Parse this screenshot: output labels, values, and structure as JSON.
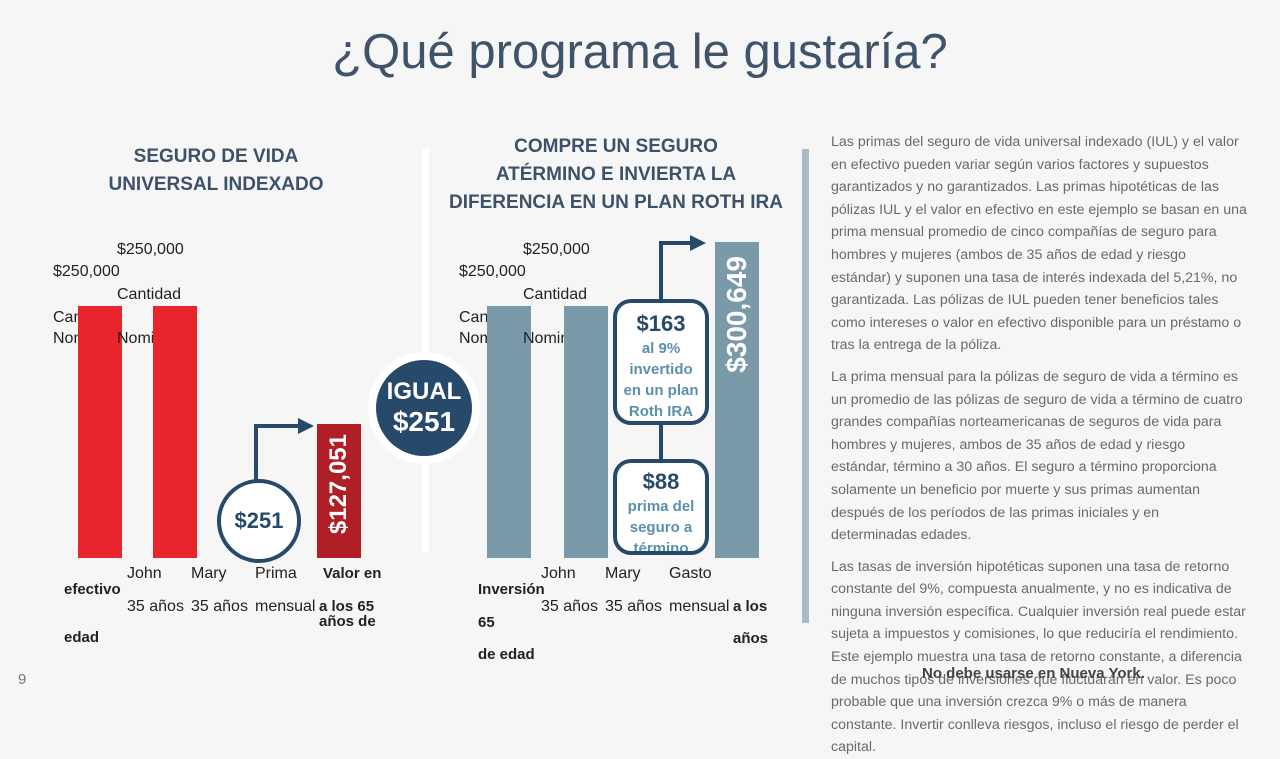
{
  "page": {
    "title": "¿Qué programa le gustaría?",
    "page_number": "9",
    "footer": "No debe usarse en Nueva York."
  },
  "left": {
    "heading_line1": "SEGURO DE VIDA",
    "heading_line2": "UNIVERSAL INDEXADO",
    "bar1": {
      "amount": "$250,000",
      "label_a": "Cantidad",
      "label_b": "Nominal",
      "name": "John",
      "age": "35 años"
    },
    "bar2": {
      "amount": "$250,000",
      "label_a": "Cantidad",
      "label_b": "Nominal",
      "name": "Mary",
      "age": "35 años"
    },
    "premium": {
      "value": "$251",
      "label_a": "Prima",
      "label_b": "mensual"
    },
    "value_bar": {
      "value": "$127,051",
      "label_a": "Valor en",
      "label_b": "efectivo",
      "label_c": "a los 65",
      "label_d": "años de",
      "label_e": "edad"
    }
  },
  "center": {
    "line1": "IGUAL",
    "line2": "$251"
  },
  "right": {
    "heading_line1": "COMPRE UN SEGURO",
    "heading_line2": "ATÉRMINO E INVIERTA LA",
    "heading_line3": "DIFERENCIA EN UN PLAN ROTH IRA",
    "bar1": {
      "amount": "$250,000",
      "label_a": "Cantidad",
      "label_b": "Nominal",
      "name": "John",
      "age": "35 años"
    },
    "bar2": {
      "amount": "$250,000",
      "label_a": "Cantidad",
      "label_b": "Nominal",
      "name": "Mary",
      "age": "35 años"
    },
    "invest": {
      "value": "$163",
      "l1": "al 9%",
      "l2": "invertido",
      "l3": "en un plan",
      "l4": "Roth IRA"
    },
    "term": {
      "value": "$88",
      "l1": "prima del",
      "l2": "seguro a",
      "l3": "término"
    },
    "expense": {
      "label_a": "Gasto",
      "label_b": "mensual"
    },
    "value_bar": {
      "value": "$300,649",
      "label_a": "Inversión",
      "label_b": "a los",
      "label_c": "65",
      "label_d": "años",
      "label_e": "de edad"
    }
  },
  "disclaimer": {
    "p1": "Las primas del seguro de vida universal indexado (IUL) y el valor en efectivo pueden variar según varios factores y supuestos garantizados y no garantizados. Las primas hipotéticas de las pólizas IUL y el valor en efectivo en este ejemplo se basan en una prima mensual promedio de cinco compañías de seguro para hombres y mujeres (ambos de 35 años de edad y riesgo estándar) y suponen una tasa de interés indexada del 5,21%, no garantizada. Las pólizas de IUL pueden tener beneficios tales como intereses o valor en efectivo disponible para un préstamo o tras la entrega de la póliza.",
    "p2": "La prima mensual para la pólizas de seguro de vida a término es un promedio de las pólizas de seguro de vida a término de cuatro grandes compañías norteamericanas de seguros de vida para hombres y mujeres, ambos de 35 años de edad y riesgo estándar, término a 30 años. El seguro a término proporciona solamente un beneficio por muerte y sus primas aumentan después de los períodos de las primas iniciales y en determinadas edades.",
    "p3": "Las tasas de inversión hipotéticas suponen una tasa de retorno constante del 9%, compuesta anualmente, y no es indicativa de ninguna inversión específica. Cualquier inversión real puede estar sujeta a impuestos y comisiones, lo que reduciría el rendimiento. Este ejemplo muestra una tasa de retorno constante, a diferencia de muchos tipos de inversiones que fluctuarán en valor. Es poco probable que una inversión crezca 9% o más de manera constante. Invertir conlleva riesgos, incluso el riesgo de perder el capital."
  }
}
